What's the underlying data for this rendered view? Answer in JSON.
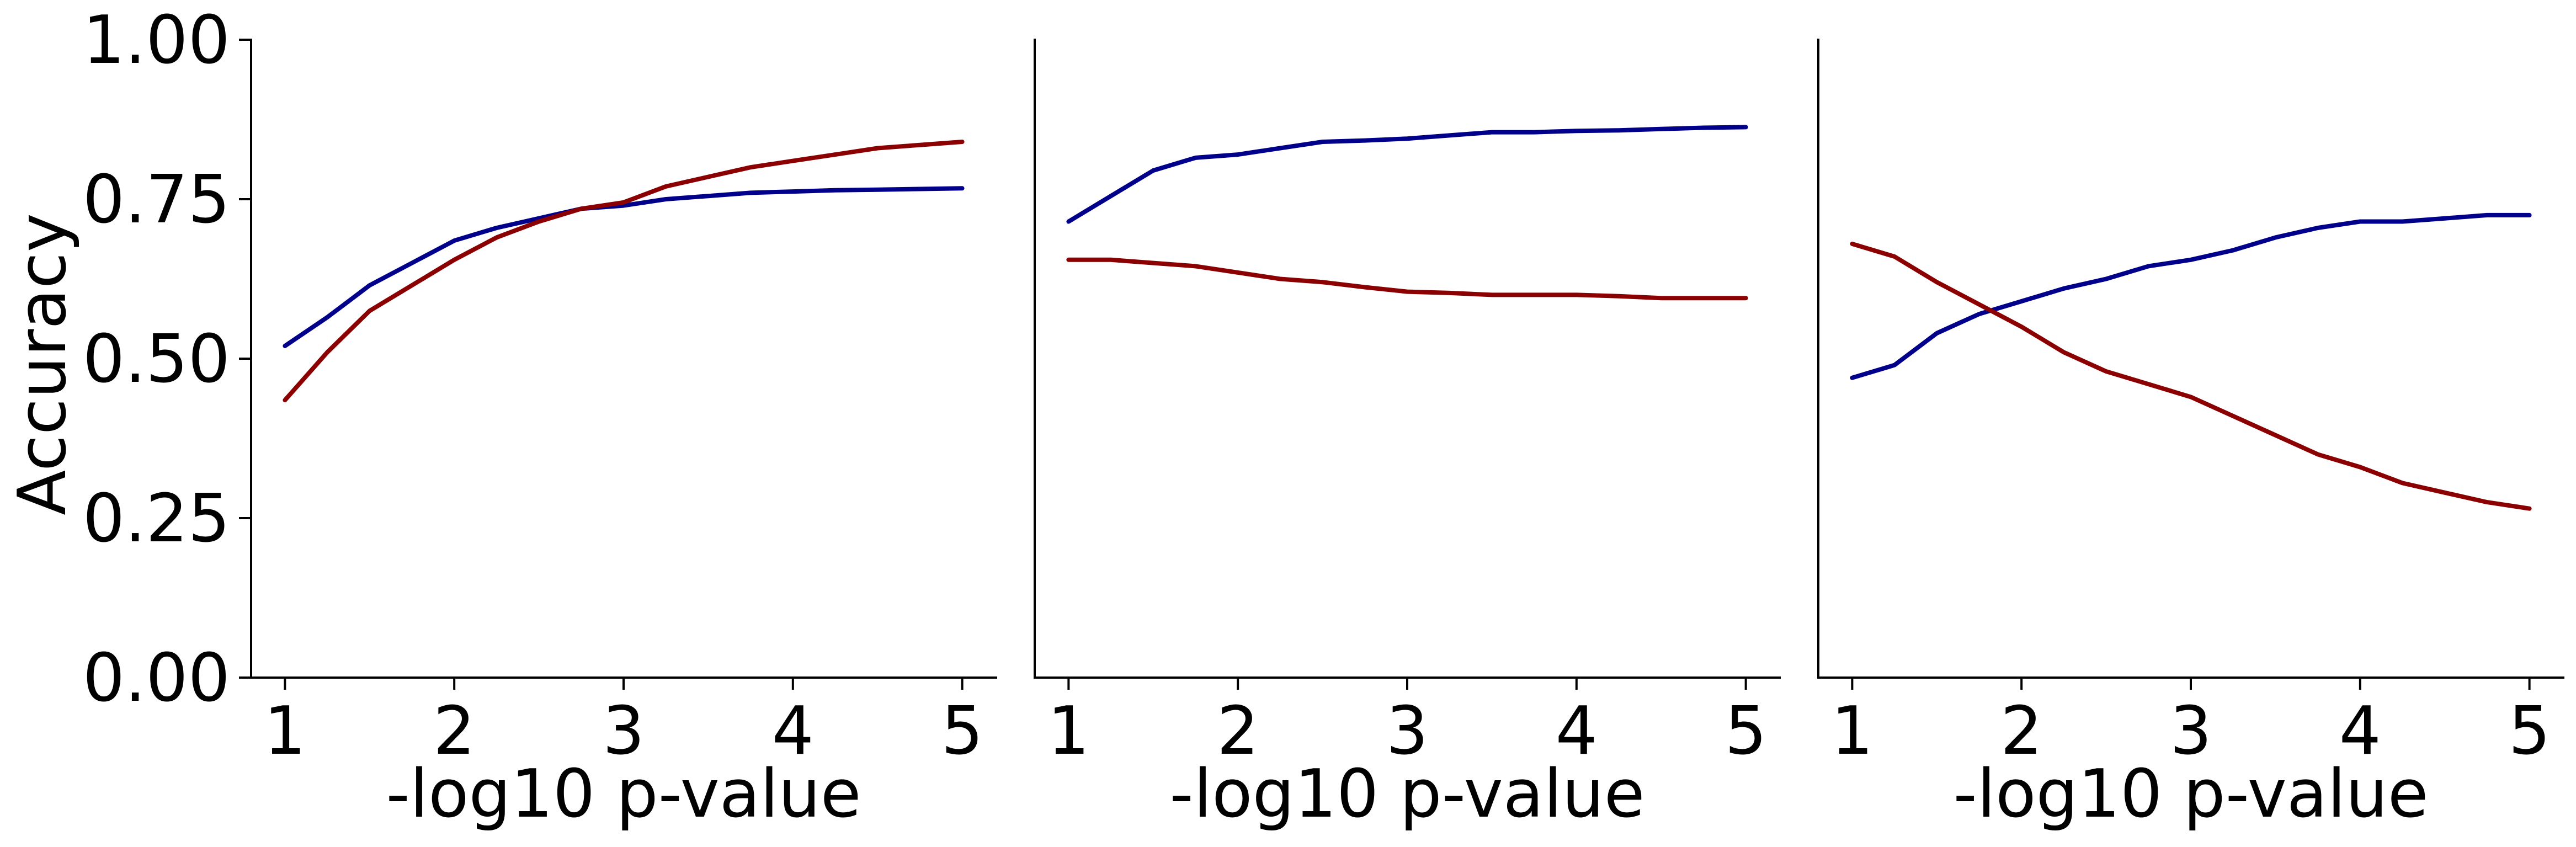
{
  "figure": {
    "ylabel": "Accuracy"
  },
  "chart_data": [
    {
      "type": "line",
      "xlabel": "-log10 p-value",
      "ylabel": "Accuracy",
      "xlim": [
        0.8,
        5.2
      ],
      "ylim": [
        0,
        1
      ],
      "xticks": [
        1,
        2,
        3,
        4,
        5
      ],
      "xtick_labels": [
        "1",
        "2",
        "3",
        "4",
        "5"
      ],
      "yticks": [
        0,
        0.25,
        0.5,
        0.75,
        1
      ],
      "ytick_labels": [
        "0.00",
        "0.25",
        "0.50",
        "0.75",
        "1.00"
      ],
      "show_yticks": true,
      "grid": false,
      "x": [
        1.0,
        1.25,
        1.5,
        1.75,
        2.0,
        2.25,
        2.5,
        2.75,
        3.0,
        3.25,
        3.5,
        3.75,
        4.0,
        4.25,
        4.5,
        4.75,
        5.0
      ],
      "series": [
        {
          "color": "#00008b",
          "values": [
            0.52,
            0.565,
            0.615,
            0.65,
            0.685,
            0.705,
            0.72,
            0.735,
            0.74,
            0.75,
            0.755,
            0.76,
            0.762,
            0.764,
            0.765,
            0.766,
            0.767
          ]
        },
        {
          "color": "#8b0000",
          "values": [
            0.435,
            0.51,
            0.575,
            0.615,
            0.655,
            0.69,
            0.715,
            0.735,
            0.745,
            0.77,
            0.785,
            0.8,
            0.81,
            0.82,
            0.83,
            0.835,
            0.84
          ]
        }
      ]
    },
    {
      "type": "line",
      "xlabel": "-log10 p-value",
      "ylabel": "",
      "xlim": [
        0.8,
        5.2
      ],
      "ylim": [
        0,
        1
      ],
      "xticks": [
        1,
        2,
        3,
        4,
        5
      ],
      "xtick_labels": [
        "1",
        "2",
        "3",
        "4",
        "5"
      ],
      "yticks": [],
      "ytick_labels": [],
      "show_yticks": false,
      "grid": false,
      "x": [
        1.0,
        1.25,
        1.5,
        1.75,
        2.0,
        2.25,
        2.5,
        2.75,
        3.0,
        3.25,
        3.5,
        3.75,
        4.0,
        4.25,
        4.5,
        4.75,
        5.0
      ],
      "series": [
        {
          "color": "#00008b",
          "values": [
            0.715,
            0.755,
            0.795,
            0.815,
            0.82,
            0.83,
            0.84,
            0.842,
            0.845,
            0.85,
            0.855,
            0.855,
            0.857,
            0.858,
            0.86,
            0.862,
            0.863
          ]
        },
        {
          "color": "#8b0000",
          "values": [
            0.655,
            0.655,
            0.65,
            0.645,
            0.635,
            0.625,
            0.62,
            0.612,
            0.605,
            0.603,
            0.6,
            0.6,
            0.6,
            0.598,
            0.595,
            0.595,
            0.595
          ]
        }
      ]
    },
    {
      "type": "line",
      "xlabel": "-log10 p-value",
      "ylabel": "",
      "xlim": [
        0.8,
        5.2
      ],
      "ylim": [
        0,
        1
      ],
      "xticks": [
        1,
        2,
        3,
        4,
        5
      ],
      "xtick_labels": [
        "1",
        "2",
        "3",
        "4",
        "5"
      ],
      "yticks": [],
      "ytick_labels": [],
      "show_yticks": false,
      "grid": false,
      "x": [
        1.0,
        1.25,
        1.5,
        1.75,
        2.0,
        2.25,
        2.5,
        2.75,
        3.0,
        3.25,
        3.5,
        3.75,
        4.0,
        4.25,
        4.5,
        4.75,
        5.0
      ],
      "series": [
        {
          "color": "#00008b",
          "values": [
            0.47,
            0.49,
            0.54,
            0.57,
            0.59,
            0.61,
            0.625,
            0.645,
            0.655,
            0.67,
            0.69,
            0.705,
            0.715,
            0.715,
            0.72,
            0.725,
            0.725
          ]
        },
        {
          "color": "#8b0000",
          "values": [
            0.68,
            0.66,
            0.62,
            0.585,
            0.55,
            0.51,
            0.48,
            0.46,
            0.44,
            0.41,
            0.38,
            0.35,
            0.33,
            0.305,
            0.29,
            0.275,
            0.265
          ]
        }
      ]
    }
  ]
}
